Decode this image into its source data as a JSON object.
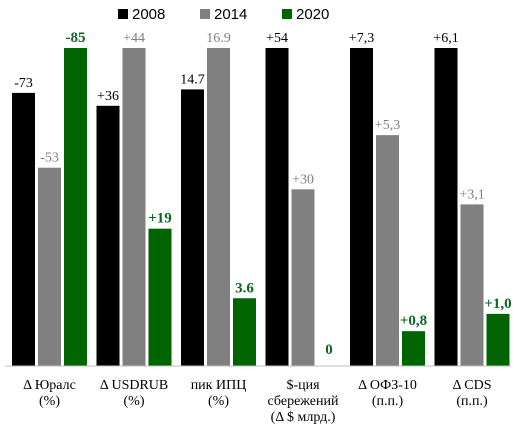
{
  "chart_data": {
    "type": "bar",
    "legend_position": "top",
    "grid": false,
    "series": [
      {
        "name": "2008",
        "color": "#000000"
      },
      {
        "name": "2014",
        "color": "#808080"
      },
      {
        "name": "2020",
        "color": "#006400"
      }
    ],
    "categories": [
      {
        "lines": [
          "Δ Юралс",
          "(%)"
        ],
        "values": [
          {
            "value": 73,
            "label": "-73"
          },
          {
            "value": 53,
            "label": "-53"
          },
          {
            "value": 85,
            "label": "-85"
          }
        ]
      },
      {
        "lines": [
          "Δ USDRUB",
          "(%)"
        ],
        "values": [
          {
            "value": 36,
            "label": "+36"
          },
          {
            "value": 44,
            "label": "+44"
          },
          {
            "value": 19,
            "label": "+19"
          }
        ]
      },
      {
        "lines": [
          "пик ИПЦ",
          "(%)"
        ],
        "values": [
          {
            "value": 14.7,
            "label": "14.7"
          },
          {
            "value": 16.9,
            "label": "16.9"
          },
          {
            "value": 3.6,
            "label": "3.6"
          }
        ]
      },
      {
        "lines": [
          "$-ция",
          "сбережений",
          "(Δ $ млрд.)"
        ],
        "values": [
          {
            "value": 54,
            "label": "+54"
          },
          {
            "value": 30,
            "label": "+30"
          },
          {
            "value": 0,
            "label": "0"
          }
        ]
      },
      {
        "lines": [
          "Δ ОФЗ-10",
          "(п.п.)"
        ],
        "values": [
          {
            "value": 7.3,
            "label": "+7,3"
          },
          {
            "value": 5.3,
            "label": "+5,3"
          },
          {
            "value": 0.8,
            "label": "+0,8"
          }
        ]
      },
      {
        "lines": [
          "Δ CDS",
          "(п.п.)"
        ],
        "values": [
          {
            "value": 6.1,
            "label": "+6,1"
          },
          {
            "value": 3.1,
            "label": "+3,1"
          },
          {
            "value": 1.0,
            "label": "+1,0"
          }
        ]
      }
    ]
  }
}
